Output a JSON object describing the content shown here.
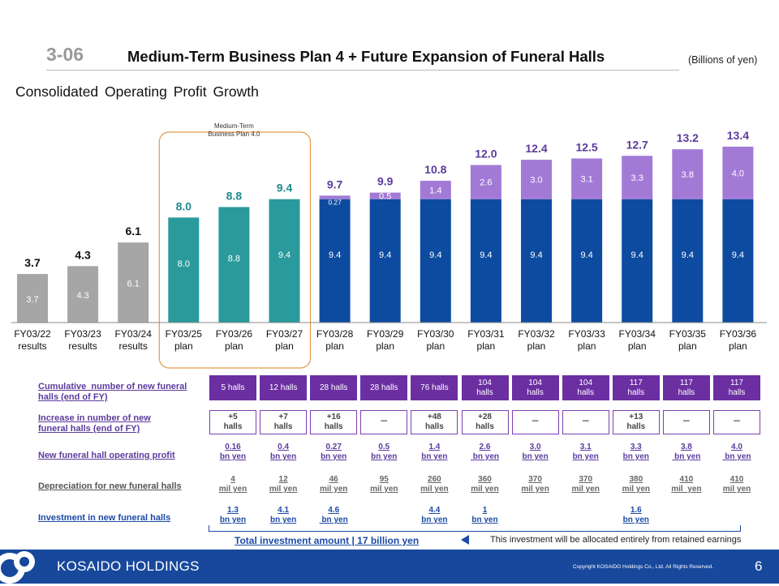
{
  "header": {
    "slide_number": "3-06",
    "title": "Medium-Term Business Plan 4  + Future Expansion of Funeral Halls",
    "unit": "(Billions of yen)",
    "subtitle": "Consolidated  Operating  Profit Growth"
  },
  "colors": {
    "results": "#a6a6a6",
    "plan4": "#2a9a9c",
    "base": "#0d4ba0",
    "new_halls": "#a27ad6",
    "purple_text": "#5b3b9c",
    "teal_text": "#1f8a8c",
    "footer": "#17489c"
  },
  "chart_data": {
    "type": "bar",
    "stacked": true,
    "categories": [
      "FY03/22\nresults",
      "FY03/23\nresults",
      "FY03/24\nresults",
      "FY03/25\nplan",
      "FY03/26\nplan",
      "FY03/27\nplan",
      "FY03/28\nplan",
      "FY03/29\nplan",
      "FY03/30\nplan",
      "FY03/31\nplan",
      "FY03/32\nplan",
      "FY03/33\nplan",
      "FY03/34\nplan",
      "FY03/35\nplan",
      "FY03/36\nplan"
    ],
    "bar_groups": [
      "results",
      "results",
      "results",
      "plan4",
      "plan4",
      "plan4",
      "base",
      "base",
      "base",
      "base",
      "base",
      "base",
      "base",
      "base",
      "base"
    ],
    "series": [
      {
        "values": [
          3.7,
          4.3,
          6.1,
          8.0,
          8.8,
          9.4,
          9.4,
          9.4,
          9.4,
          9.4,
          9.4,
          9.4,
          9.4,
          9.4,
          9.4
        ],
        "labels": [
          "3.7",
          "4.3",
          "6.1",
          "8.0",
          "8.8",
          "9.4",
          "9.4",
          "9.4",
          "9.4",
          "9.4",
          "9.4",
          "9.4",
          "9.4",
          "9.4",
          "9.4"
        ]
      },
      {
        "values": [
          0,
          0,
          0,
          0,
          0,
          0,
          0.27,
          0.5,
          1.4,
          2.6,
          3.0,
          3.1,
          3.3,
          3.8,
          4.0
        ],
        "labels": [
          "",
          "",
          "",
          "",
          "",
          "",
          "0.27",
          "0.5",
          "1.4",
          "2.6",
          "3.0",
          "3.1",
          "3.3",
          "3.8",
          "4.0"
        ]
      }
    ],
    "totals": [
      "3.7",
      "4.3",
      "6.1",
      "8.0",
      "8.8",
      "9.4",
      "9.7",
      "9.9",
      "10.8",
      "12.0",
      "12.4",
      "12.5",
      "12.7",
      "13.2",
      "13.4"
    ],
    "annotation": "Medium-Term\nBusiness Plan 4.0",
    "ylim": [
      0,
      14
    ]
  },
  "table": {
    "rows": [
      {
        "label": "Cumulative  number of new funeral\nhalls (end of FY)",
        "style": "halls",
        "cells": [
          "5 halls",
          "12 halls",
          "28 halls",
          "28 halls",
          "76 halls",
          "104\nhalls",
          "104\nhalls",
          "104\nhalls",
          "117\nhalls",
          "117\nhalls",
          "117\nhalls"
        ]
      },
      {
        "label": "Increase in number of new\nfuneral halls (end of FY)",
        "style": "inc",
        "cells": [
          "+5\nhalls",
          "+7\nhalls",
          "+16\nhalls",
          "－",
          "+48\nhalls",
          "+28\nhalls",
          "－",
          "－",
          "+13\nhalls",
          "－",
          "－"
        ]
      },
      {
        "label": "New funeral hall operating profit",
        "style": "purple",
        "cells": [
          "0.16\nbn yen",
          "0.4\nbn yen",
          "0.27\nbn yen",
          "0.5\nbn yen",
          "1.4\nbn yen",
          "2.6\n bn yen",
          "3.0\nbn yen",
          "3.1\nbn yen",
          "3.3\nbn yen",
          "3.8\n bn yen",
          "4.0\n bn yen"
        ]
      },
      {
        "label": "Depreciation for new funeral halls",
        "style": "grey",
        "cells": [
          "4\nmil yen",
          "12\nmil yen",
          "46\nmil yen",
          "95\nmil yen",
          "260\nmil yen",
          "360\nmil yen",
          "370\nmil yen",
          "370\nmil yen",
          "380\nmil yen",
          "410\nmil  yen",
          "410\nmil yen"
        ]
      },
      {
        "label": "Investment in new funeral halls",
        "style": "blue",
        "cells": [
          "1.3\nbn yen",
          "4.1\nbn yen",
          "4.6\n bn yen",
          "",
          "4.4\nbn yen",
          "1\nbn yen",
          "",
          "",
          "1.6\nbn yen",
          "",
          ""
        ]
      }
    ],
    "total_investment": "Total investment amount | 17 billion yen",
    "note": "This investment will be allocated entirely from retained earnings"
  },
  "footer": {
    "company": "KOSAIDO HOLDINGS",
    "copyright": "Copyright  KOSAIDO Holdings Co., Ltd. All Rights Reserved.",
    "page": "6"
  }
}
